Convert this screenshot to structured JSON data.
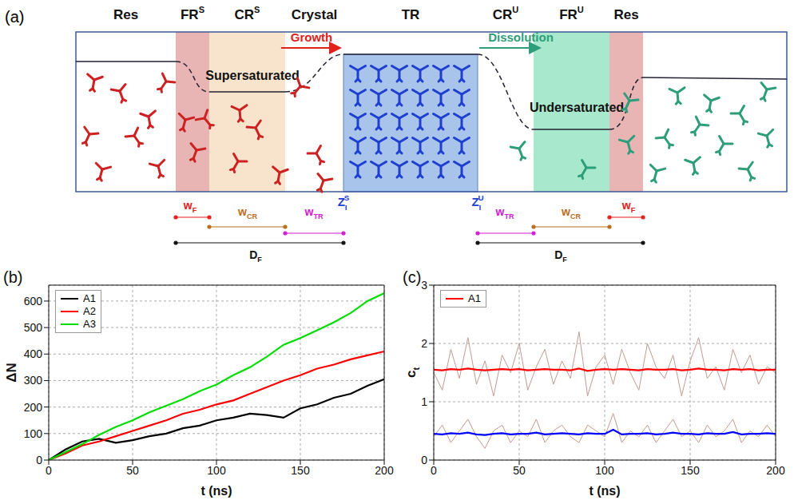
{
  "diagram": {
    "label": "(a)",
    "regions": [
      {
        "label": "Res"
      },
      {
        "label": "FR",
        "sup": "S"
      },
      {
        "label": "CR",
        "sup": "S"
      },
      {
        "label": "Crystal"
      },
      {
        "label": "TR"
      },
      {
        "label": "CR",
        "sup": "U"
      },
      {
        "label": "FR",
        "sup": "U"
      },
      {
        "label": "Res"
      }
    ],
    "arrows": [
      "Growth",
      "Dissolution"
    ],
    "states": [
      "Supersaturated",
      "Undersaturated"
    ],
    "interfaces": [
      {
        "label": "Z",
        "sub": "I",
        "sup": "S"
      },
      {
        "label": "Z",
        "sub": "I",
        "sup": "U"
      }
    ],
    "widths": [
      {
        "label": "w",
        "sub": "F"
      },
      {
        "label": "w",
        "sub": "CR"
      },
      {
        "label": "w",
        "sub": "TR"
      }
    ],
    "distance": {
      "label": "D",
      "sub": "F"
    }
  },
  "chart_data": [
    {
      "type": "line",
      "label": "(b)",
      "x_label": "t (ns)",
      "y_label": {
        "text": "ΔN"
      },
      "x": [
        0,
        10,
        20,
        30,
        40,
        50,
        60,
        70,
        80,
        90,
        100,
        110,
        120,
        130,
        140,
        150,
        160,
        170,
        180,
        190,
        200
      ],
      "series": [
        {
          "name": "A1",
          "color": "#000000",
          "line_style": "solid",
          "values": [
            0,
            40,
            70,
            80,
            65,
            75,
            90,
            100,
            120,
            130,
            150,
            160,
            175,
            170,
            160,
            195,
            210,
            235,
            250,
            280,
            305
          ]
        },
        {
          "name": "A2",
          "color": "#ff0000",
          "line_style": "solid",
          "values": [
            0,
            25,
            55,
            70,
            90,
            110,
            130,
            150,
            175,
            190,
            210,
            225,
            250,
            275,
            300,
            320,
            345,
            360,
            380,
            395,
            410
          ]
        },
        {
          "name": "A3",
          "color": "#00dd00",
          "line_style": "solid",
          "values": [
            0,
            30,
            60,
            95,
            125,
            150,
            180,
            205,
            230,
            260,
            285,
            320,
            350,
            390,
            435,
            460,
            490,
            520,
            555,
            600,
            630
          ]
        }
      ],
      "xlim": [
        0,
        200
      ],
      "xticks": [
        0,
        50,
        100,
        150,
        200
      ],
      "ylim": [
        0,
        660
      ],
      "yticks": [
        0,
        100,
        200,
        300,
        400,
        500,
        600
      ],
      "grid": true,
      "legend": "upper left"
    },
    {
      "type": "line",
      "label": "(c)",
      "x_label": "t (ns)",
      "y_label": {
        "text": "c",
        "sub": "t"
      },
      "x": [
        0,
        5,
        10,
        15,
        20,
        25,
        30,
        35,
        40,
        45,
        50,
        55,
        60,
        65,
        70,
        75,
        80,
        85,
        90,
        95,
        100,
        105,
        110,
        115,
        120,
        125,
        130,
        135,
        140,
        145,
        150,
        155,
        160,
        165,
        170,
        175,
        180,
        185,
        190,
        195,
        200
      ],
      "series": [
        {
          "color": "#c49a92",
          "line_style": "thin",
          "values": [
            1.5,
            1.2,
            1.9,
            1.4,
            2.1,
            1.3,
            1.7,
            1.1,
            1.8,
            1.5,
            2.0,
            1.2,
            1.6,
            1.9,
            1.3,
            1.7,
            1.4,
            2.2,
            1.1,
            1.6,
            1.8,
            1.3,
            1.9,
            1.5,
            1.2,
            2.0,
            1.6,
            1.4,
            1.8,
            1.1,
            1.7,
            2.1,
            1.4,
            1.6,
            1.2,
            1.9,
            1.5,
            1.8,
            1.3,
            1.6,
            1.5
          ]
        },
        {
          "color": "#c49a92",
          "line_style": "thin",
          "values": [
            0.4,
            0.6,
            0.3,
            0.5,
            0.7,
            0.4,
            0.2,
            0.5,
            0.6,
            0.3,
            0.5,
            0.4,
            0.7,
            0.3,
            0.5,
            0.6,
            0.4,
            0.3,
            0.6,
            0.5,
            0.4,
            0.8,
            0.3,
            0.5,
            0.4,
            0.6,
            0.3,
            0.5,
            0.7,
            0.4,
            0.5,
            0.3,
            0.6,
            0.4,
            0.5,
            0.7,
            0.3,
            0.5,
            0.4,
            0.6,
            0.4
          ]
        },
        {
          "name": "A1",
          "color": "#ff0000",
          "line_style": "solid",
          "values": [
            1.55,
            1.54,
            1.56,
            1.55,
            1.57,
            1.55,
            1.54,
            1.55,
            1.56,
            1.55,
            1.56,
            1.54,
            1.55,
            1.56,
            1.55,
            1.55,
            1.54,
            1.57,
            1.53,
            1.55,
            1.56,
            1.55,
            1.56,
            1.55,
            1.54,
            1.56,
            1.55,
            1.55,
            1.56,
            1.54,
            1.55,
            1.57,
            1.55,
            1.55,
            1.54,
            1.56,
            1.55,
            1.56,
            1.54,
            1.55,
            1.55
          ]
        },
        {
          "color": "#0000ff",
          "line_style": "solid",
          "values": [
            0.45,
            0.44,
            0.46,
            0.45,
            0.47,
            0.44,
            0.43,
            0.45,
            0.46,
            0.44,
            0.45,
            0.45,
            0.47,
            0.44,
            0.45,
            0.46,
            0.45,
            0.44,
            0.46,
            0.45,
            0.45,
            0.52,
            0.44,
            0.45,
            0.45,
            0.46,
            0.44,
            0.45,
            0.47,
            0.45,
            0.45,
            0.44,
            0.46,
            0.45,
            0.45,
            0.48,
            0.44,
            0.45,
            0.45,
            0.46,
            0.45
          ]
        }
      ],
      "xlim": [
        0,
        200
      ],
      "xticks": [
        0,
        50,
        100,
        150,
        200
      ],
      "ylim": [
        0,
        3
      ],
      "yticks": [
        0,
        1,
        2,
        3
      ],
      "grid": true,
      "legend": "upper left"
    }
  ]
}
